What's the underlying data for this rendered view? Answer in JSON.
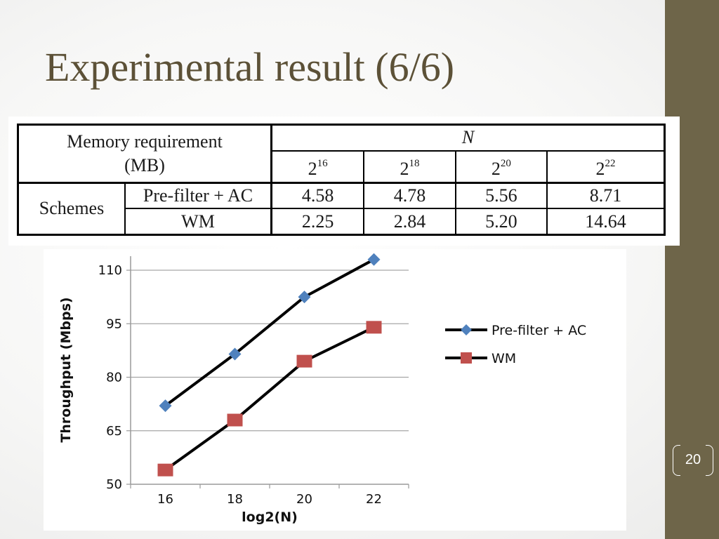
{
  "slide": {
    "title": "Experimental result (6/6)",
    "page_number": "20"
  },
  "memory_table": {
    "header_label": "Memory requirement",
    "header_unit": "(MB)",
    "n_label": "N",
    "n_base": "2",
    "n_exponents": [
      "16",
      "18",
      "20",
      "22"
    ],
    "row_group_label": "Schemes",
    "rows": [
      {
        "scheme": "Pre-filter + AC",
        "values": [
          "4.58",
          "4.78",
          "5.56",
          "8.71"
        ]
      },
      {
        "scheme": "WM",
        "values": [
          "2.25",
          "2.84",
          "5.20",
          "14.64"
        ]
      }
    ]
  },
  "colors": {
    "sidebar": "#6e6549",
    "title": "#5c5137",
    "series_prefilter": "#4f81bd",
    "series_wm": "#c0504d",
    "line": "#000000"
  },
  "chart_data": {
    "type": "line",
    "x": [
      16,
      18,
      20,
      22
    ],
    "x_tick_labels": [
      "16",
      "18",
      "20",
      "22"
    ],
    "y_ticks": [
      50,
      65,
      80,
      95,
      110
    ],
    "y_tick_labels": [
      "50",
      "65",
      "80",
      "95",
      "110"
    ],
    "ylim": [
      50,
      110
    ],
    "xlabel": "log2(N)",
    "ylabel": "Throughput (Mbps)",
    "grid": "horizontal",
    "legend_position": "right",
    "series": [
      {
        "name": "Pre-filter + AC",
        "marker": "diamond",
        "values": [
          72,
          86.5,
          102.5,
          113
        ]
      },
      {
        "name": "WM",
        "marker": "square",
        "values": [
          54,
          68,
          84.5,
          94
        ]
      }
    ]
  }
}
